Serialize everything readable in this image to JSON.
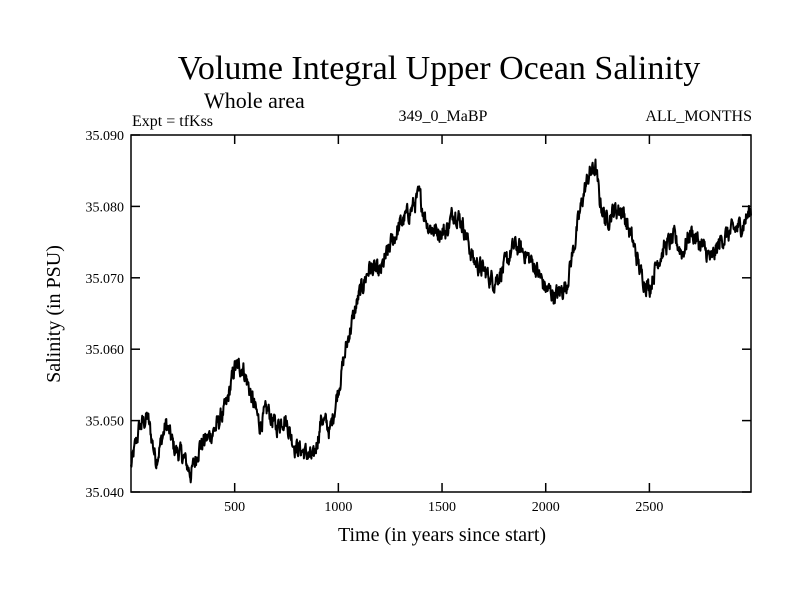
{
  "chart_data": {
    "type": "line",
    "title": "Volume Integral Upper Ocean Salinity",
    "subtitle": "Whole area",
    "experiment": "Expt = tfKss",
    "run_label": "349_0_MaBP",
    "months_label": "ALL_MONTHS",
    "xlabel": "Time (in years since start)",
    "ylabel": "Salinity (in PSU)",
    "xlim": [
      0,
      2990
    ],
    "ylim": [
      35.04,
      35.09
    ],
    "x_ticks": [
      500,
      1000,
      1500,
      2000,
      2500
    ],
    "x_tick_labels": [
      "500",
      "1000",
      "1500",
      "2000",
      "2500"
    ],
    "y_ticks": [
      35.04,
      35.05,
      35.06,
      35.07,
      35.08,
      35.09
    ],
    "y_tick_labels": [
      "35.040",
      "35.050",
      "35.060",
      "35.070",
      "35.080",
      "35.090"
    ],
    "line_color": "#000000",
    "series": [
      {
        "name": "Salinity",
        "x": [
          0,
          40,
          80,
          120,
          170,
          210,
          250,
          290,
          330,
          370,
          410,
          460,
          500,
          540,
          580,
          620,
          660,
          700,
          740,
          790,
          840,
          880,
          920,
          960,
          1000,
          1050,
          1100,
          1150,
          1200,
          1250,
          1300,
          1350,
          1390,
          1430,
          1470,
          1520,
          1560,
          1600,
          1650,
          1700,
          1750,
          1800,
          1850,
          1900,
          1950,
          2000,
          2050,
          2100,
          2140,
          2180,
          2210,
          2240,
          2260,
          2290,
          2330,
          2370,
          2420,
          2460,
          2500,
          2540,
          2580,
          2620,
          2660,
          2700,
          2750,
          2800,
          2850,
          2900,
          2950,
          2990
        ],
        "y": [
          35.0435,
          35.049,
          35.0505,
          35.0445,
          35.0495,
          35.046,
          35.045,
          35.0425,
          35.0465,
          35.0475,
          35.049,
          35.052,
          35.0575,
          35.0575,
          35.0535,
          35.0495,
          35.0515,
          35.049,
          35.0505,
          35.0465,
          35.0455,
          35.0445,
          35.0505,
          35.0485,
          35.0545,
          35.062,
          35.0675,
          35.0715,
          35.0705,
          35.0745,
          35.0775,
          35.0795,
          35.0815,
          35.0775,
          35.0765,
          35.0765,
          35.0795,
          35.0775,
          35.0725,
          35.071,
          35.0695,
          35.0715,
          35.0745,
          35.0735,
          35.0715,
          35.0685,
          35.0675,
          35.069,
          35.075,
          35.0815,
          35.0845,
          35.0855,
          35.081,
          35.078,
          35.0795,
          35.0795,
          35.075,
          35.0705,
          35.0685,
          35.0725,
          35.0745,
          35.0755,
          35.0735,
          35.0765,
          35.0745,
          35.0725,
          35.0755,
          35.0765,
          35.0775,
          35.0795
        ]
      }
    ]
  }
}
